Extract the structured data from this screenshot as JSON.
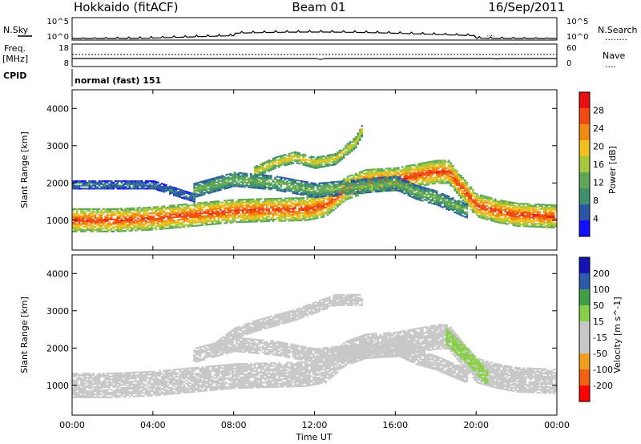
{
  "header": {
    "station": "Hokkaido (fitACF)",
    "beam": "Beam 01",
    "date": "16/Sep/2011"
  },
  "aux_labels": {
    "nsky_label": "N.Sky",
    "nsearch_label": "N.Search",
    "nsearch_dots": "........",
    "freq_label_1": "Freq.",
    "freq_label_2": "[MHz]",
    "nave_label": "Nave",
    "nave_dots": "....",
    "cpid_label": "CPID",
    "cpid_value": "normal (fast) 151",
    "noise_left_ticks": [
      "10^5",
      "10^0"
    ],
    "noise_right_ticks": [
      "10^5",
      "10^0"
    ],
    "freq_ticks": [
      "18",
      "8"
    ],
    "nave_ticks": [
      "60",
      "0"
    ]
  },
  "time_axis": {
    "label": "Time UT",
    "ticks": [
      "00:00",
      "04:00",
      "08:00",
      "12:00",
      "16:00",
      "20:00",
      "00:00"
    ]
  },
  "colors": {
    "power_scale": [
      "#1010ff",
      "#2a56a8",
      "#3f8f6e",
      "#5fa858",
      "#a6c83a",
      "#f0c020",
      "#f08a10",
      "#f04a10",
      "#e81010"
    ],
    "velocity_scale": [
      "#ff0000",
      "#f06010",
      "#f0a020",
      "#c8c8c8",
      "#c8c8c8",
      "#88d048",
      "#3fa048",
      "#2a5aa8",
      "#1414b4"
    ]
  },
  "chart_data": [
    {
      "type": "heatmap",
      "title": "",
      "ylabel": "Slant Range [km]",
      "xlabel": "",
      "yticks": [
        "1000",
        "2000",
        "3000",
        "4000"
      ],
      "ylim": [
        200,
        4500
      ],
      "xlim_hours": [
        0,
        24
      ],
      "colorbar": {
        "label": "Power [dB]",
        "ticks": [
          "4",
          "8",
          "12",
          "16",
          "20",
          "24",
          "28"
        ],
        "range": [
          0,
          32
        ]
      },
      "bands": [
        {
          "name": "main",
          "points": [
            [
              0,
              1000
            ],
            [
              2,
              1000
            ],
            [
              4,
              1050
            ],
            [
              6,
              1150
            ],
            [
              8,
              1250
            ],
            [
              10,
              1280
            ],
            [
              11.5,
              1300
            ],
            [
              12.5,
              1400
            ],
            [
              13.5,
              1850
            ],
            [
              14.5,
              2050
            ],
            [
              16,
              2100
            ],
            [
              17,
              2200
            ],
            [
              18,
              2300
            ],
            [
              18.6,
              2300
            ],
            [
              19.2,
              1900
            ],
            [
              20,
              1400
            ],
            [
              21,
              1250
            ],
            [
              22,
              1150
            ],
            [
              24,
              1100
            ]
          ],
          "width": 300,
          "value": 28
        },
        {
          "name": "upper",
          "points": [
            [
              9,
              2300
            ],
            [
              10,
              2550
            ],
            [
              11,
              2700
            ],
            [
              12,
              2550
            ],
            [
              13,
              2650
            ],
            [
              14,
              3100
            ],
            [
              14.3,
              3400
            ]
          ],
          "width": 150,
          "value": 20
        },
        {
          "name": "mid",
          "points": [
            [
              6,
              1800
            ],
            [
              8,
              2100
            ],
            [
              10,
              2000
            ],
            [
              12,
              1800
            ],
            [
              14,
              1900
            ],
            [
              16,
              2000
            ],
            [
              17,
              1750
            ],
            [
              18,
              1600
            ],
            [
              19.5,
              1250
            ]
          ],
          "width": 180,
          "value": 14
        },
        {
          "name": "low",
          "points": [
            [
              0,
              1950
            ],
            [
              4,
              1950
            ],
            [
              6,
              1600
            ]
          ],
          "width": 100,
          "value": 8
        }
      ]
    },
    {
      "type": "heatmap",
      "title": "",
      "ylabel": "Slant Range [km]",
      "xlabel": "Time UT",
      "yticks": [
        "1000",
        "2000",
        "3000",
        "4000"
      ],
      "ylim": [
        200,
        4500
      ],
      "xlim_hours": [
        0,
        24
      ],
      "colorbar": {
        "label": "Velocity [m s^-1]",
        "ticks": [
          "-200",
          "-100",
          "-50",
          "-15",
          "15",
          "50",
          "100",
          "200"
        ],
        "range": [
          -250,
          250
        ]
      },
      "bands": [
        {
          "name": "main",
          "points": [
            [
              0,
              1000
            ],
            [
              2,
              1000
            ],
            [
              4,
              1050
            ],
            [
              6,
              1150
            ],
            [
              8,
              1250
            ],
            [
              10,
              1280
            ],
            [
              11.5,
              1300
            ],
            [
              12.5,
              1400
            ],
            [
              13.5,
              1850
            ],
            [
              14.5,
              2050
            ],
            [
              16,
              2100
            ],
            [
              17,
              2200
            ],
            [
              18,
              2300
            ],
            [
              18.6,
              2300
            ],
            [
              19.2,
              1900
            ],
            [
              20,
              1400
            ],
            [
              21,
              1250
            ],
            [
              22,
              1150
            ],
            [
              24,
              1100
            ]
          ],
          "width": 320,
          "value": 0
        },
        {
          "name": "upper",
          "points": [
            [
              7,
              2000
            ],
            [
              8,
              2400
            ],
            [
              9,
              2600
            ],
            [
              11,
              2900
            ],
            [
              13,
              3300
            ],
            [
              14.3,
              3300
            ]
          ],
          "width": 150,
          "value": -60
        },
        {
          "name": "mid",
          "points": [
            [
              6,
              1800
            ],
            [
              8,
              2100
            ],
            [
              10,
              2000
            ],
            [
              12,
              1800
            ],
            [
              14,
              1900
            ],
            [
              16,
              2000
            ],
            [
              17,
              1750
            ],
            [
              18,
              1600
            ],
            [
              19.5,
              1250
            ]
          ],
          "width": 180,
          "value": 0
        },
        {
          "name": "east",
          "points": [
            [
              18.5,
              2300
            ],
            [
              19.5,
              1800
            ],
            [
              20.5,
              1200
            ]
          ],
          "width": 200,
          "value": 40
        }
      ]
    }
  ]
}
